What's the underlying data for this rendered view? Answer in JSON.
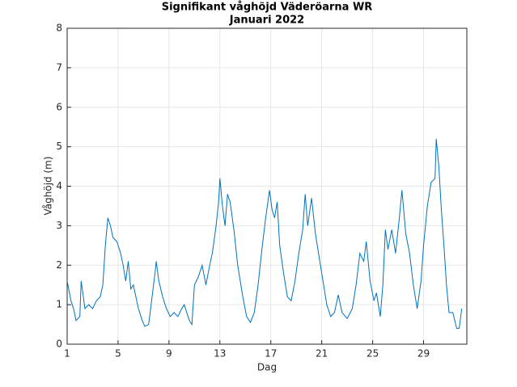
{
  "chart_data": {
    "type": "line",
    "title": "Signifikant våghöjd Väderöarna WR",
    "subtitle": "Januari 2022",
    "xlabel": "Dag",
    "ylabel": "Våghöjd (m)",
    "color": "#0072bd",
    "x": [
      1,
      1.3,
      1.5,
      1.7,
      2,
      2.1,
      2.4,
      2.7,
      3,
      3.3,
      3.6,
      3.8,
      4.0,
      4.2,
      4.4,
      4.6,
      4.9,
      5.2,
      5.4,
      5.6,
      5.8,
      6.0,
      6.2,
      6.6,
      6.9,
      7.1,
      7.4,
      7.6,
      7.9,
      8.0,
      8.2,
      8.5,
      8.8,
      9.1,
      9.4,
      9.7,
      10,
      10.2,
      10.6,
      10.8,
      11.0,
      11.3,
      11.6,
      11.9,
      12.2,
      12.4,
      12.7,
      12.9,
      13.0,
      13.2,
      13.4,
      13.6,
      13.8,
      14.1,
      14.4,
      14.8,
      15.1,
      15.4,
      15.7,
      16.0,
      16.3,
      16.6,
      16.9,
      17.1,
      17.3,
      17.5,
      17.7,
      18.0,
      18.3,
      18.6,
      18.9,
      19.2,
      19.5,
      19.7,
      19.9,
      20.2,
      20.5,
      20.8,
      21.1,
      21.4,
      21.7,
      22,
      22.3,
      22.6,
      23,
      23.4,
      23.7,
      24.0,
      24.3,
      24.5,
      24.8,
      25.1,
      25.3,
      25.6,
      25.8,
      26.0,
      26.2,
      26.5,
      26.8,
      27.1,
      27.3,
      27.6,
      27.9,
      28.2,
      28.5,
      28.8,
      29.0,
      29.3,
      29.6,
      29.9,
      30.0,
      30.2,
      30.4,
      30.6,
      30.8,
      31.0,
      31.3,
      31.6,
      31.8,
      32.0
    ],
    "values": [
      1.6,
      1.1,
      0.9,
      0.6,
      0.7,
      1.6,
      0.9,
      1.0,
      0.9,
      1.1,
      1.2,
      1.5,
      2.5,
      3.2,
      3.0,
      2.7,
      2.6,
      2.3,
      2.0,
      1.6,
      2.1,
      1.4,
      1.5,
      0.9,
      0.6,
      0.45,
      0.5,
      1.0,
      1.8,
      2.1,
      1.6,
      1.2,
      0.9,
      0.7,
      0.8,
      0.7,
      0.9,
      1.0,
      0.6,
      0.5,
      1.5,
      1.7,
      2.0,
      1.5,
      2.0,
      2.3,
      3.0,
      3.6,
      4.2,
      3.5,
      3.0,
      3.8,
      3.6,
      2.9,
      2.0,
      1.2,
      0.7,
      0.55,
      0.8,
      1.5,
      2.4,
      3.2,
      3.9,
      3.4,
      3.2,
      3.6,
      2.5,
      1.8,
      1.2,
      1.1,
      1.6,
      2.3,
      2.9,
      3.8,
      3.0,
      3.7,
      2.8,
      2.2,
      1.6,
      1.0,
      0.7,
      0.8,
      1.25,
      0.8,
      0.65,
      0.9,
      1.5,
      2.3,
      2.1,
      2.6,
      1.6,
      1.1,
      1.3,
      0.7,
      1.5,
      2.9,
      2.4,
      2.9,
      2.3,
      3.2,
      3.9,
      2.8,
      2.3,
      1.5,
      0.9,
      1.6,
      2.5,
      3.5,
      4.1,
      4.2,
      5.2,
      4.5,
      3.4,
      2.5,
      1.5,
      0.8,
      0.8,
      0.4,
      0.4,
      0.9
    ],
    "xlim": [
      1,
      32.4
    ],
    "xticks": [
      1,
      5,
      9,
      13,
      17,
      21,
      25,
      29
    ],
    "ylim": [
      0,
      8
    ],
    "yticks": [
      0,
      1,
      2,
      3,
      4,
      5,
      6,
      7,
      8
    ],
    "grid": true
  }
}
